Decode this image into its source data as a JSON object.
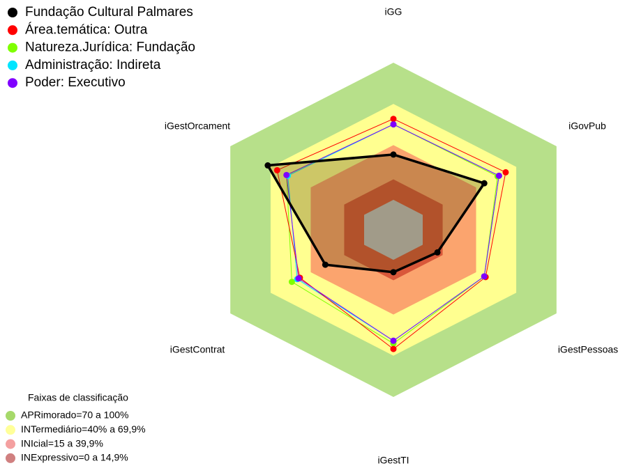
{
  "chart_data": {
    "type": "radar",
    "categories": [
      "iGG",
      "iGovPub",
      "iGestPessoas",
      "iGestTI",
      "iGestContrat",
      "iGestOrcament"
    ],
    "rlim": [
      0,
      100
    ],
    "series": [
      {
        "name": "Natureza.Jurídica: Fundação",
        "color": "#7fff00",
        "values": [
          55,
          56,
          46,
          61,
          54,
          58
        ]
      },
      {
        "name": "Administração: Indireta",
        "color": "#00e5ff",
        "values": [
          55,
          57,
          46,
          59,
          50,
          57
        ]
      },
      {
        "name": "Área.temática: Outra",
        "color": "#ff0000",
        "values": [
          59,
          62,
          47,
          65,
          48,
          65
        ]
      },
      {
        "name": "Poder: Executivo",
        "color": "#8000ff",
        "values": [
          55,
          57,
          46,
          59,
          49,
          58
        ]
      },
      {
        "name": "Fundação Cultural Palmares",
        "color": "#000000",
        "values": [
          33,
          46,
          11,
          9,
          29,
          72
        ]
      }
    ],
    "bands_title": "Faixas de classificação",
    "bands": [
      {
        "label": "APRimorado=70 a 100%",
        "from": 70,
        "to": 100,
        "color": "#b7e08a",
        "legend_color": "#a6d96a"
      },
      {
        "label": "INTermediário=40% a 69,9%",
        "from": 40,
        "to": 69.9,
        "color": "#ffff90",
        "legend_color": "#ffff99"
      },
      {
        "label": "INIcial=15 a 39,9%",
        "from": 15,
        "to": 39.9,
        "color": "#fba46e",
        "legend_color": "#f4a0a0"
      },
      {
        "label": "INExpressivo=0 a 14,9%",
        "from": 0,
        "to": 14.9,
        "color": "#d9583a",
        "legend_color": "#d08080"
      }
    ]
  }
}
